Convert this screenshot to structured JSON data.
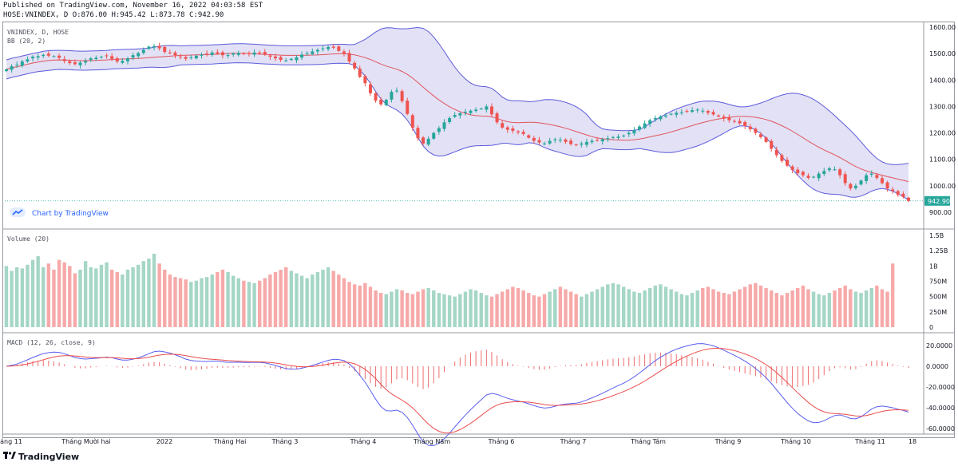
{
  "header": {
    "published": "Published on TradingView.com, November 16, 2022 04:03:58 EST",
    "ohlc": "HOSE:VNINDEX, D O:876.00 H:945.42 L:873.78 C:942.90"
  },
  "panels": {
    "price_title": "VNINDEX, D, HOSE",
    "bb_title": "BB (20, 2)",
    "volume_title": "Volume (20)",
    "macd_title": "MACD (12, 26, close, 9)"
  },
  "brand": {
    "chart_by": "Chart by TradingView",
    "footer": "TradingView"
  },
  "last_price_label": "942.90",
  "colors": {
    "up": "#26a69a",
    "down": "#ef5350",
    "bb_band": "#5b5bdb",
    "bb_fill": "#d9d7f1",
    "basis": "#e0555c",
    "macd": "#5a5ef0",
    "signal": "#ec4c4c"
  },
  "chart_data": [
    {
      "type": "candlestick",
      "title": "VNINDEX, D, HOSE",
      "indicator": "BB (20, 2)",
      "ylim": [
        850,
        1630
      ],
      "y_ticks": [
        "1600.00",
        "1500.00",
        "1400.00",
        "1300.00",
        "1200.00",
        "1100.00",
        "1000.00",
        "900.00"
      ],
      "x_ticks": [
        "áng 11",
        "Tháng Mười hai",
        "2022",
        "Tháng Hai",
        "Tháng 3",
        "Tháng 4",
        "Tháng Năm",
        "Tháng 6",
        "Tháng 7",
        "Tháng Tám",
        "Tháng 9",
        "Tháng 10",
        "Tháng 11",
        "18"
      ],
      "last_close": 942.9,
      "close": [
        1440,
        1452,
        1458,
        1470,
        1478,
        1488,
        1490,
        1495,
        1492,
        1490,
        1484,
        1472,
        1464,
        1460,
        1466,
        1472,
        1482,
        1484,
        1488,
        1492,
        1480,
        1470,
        1472,
        1482,
        1494,
        1502,
        1514,
        1526,
        1528,
        1520,
        1506,
        1502,
        1494,
        1488,
        1480,
        1486,
        1492,
        1496,
        1498,
        1504,
        1500,
        1494,
        1494,
        1500,
        1502,
        1498,
        1500,
        1504,
        1502,
        1496,
        1488,
        1482,
        1476,
        1474,
        1480,
        1486,
        1496,
        1502,
        1508,
        1514,
        1520,
        1525,
        1522,
        1510,
        1500,
        1470,
        1444,
        1412,
        1388,
        1350,
        1322,
        1308,
        1325,
        1355,
        1360,
        1320,
        1272,
        1220,
        1180,
        1160,
        1178,
        1200,
        1218,
        1240,
        1256,
        1268,
        1274,
        1280,
        1284,
        1288,
        1292,
        1300,
        1270,
        1240,
        1220,
        1212,
        1208,
        1202,
        1196,
        1182,
        1170,
        1164,
        1160,
        1170,
        1176,
        1174,
        1166,
        1158,
        1154,
        1160,
        1166,
        1170,
        1172,
        1176,
        1180,
        1184,
        1186,
        1190,
        1200,
        1210,
        1224,
        1236,
        1248,
        1256,
        1262,
        1266,
        1272,
        1276,
        1278,
        1282,
        1286,
        1288,
        1284,
        1276,
        1270,
        1262,
        1254,
        1248,
        1244,
        1236,
        1226,
        1214,
        1200,
        1184,
        1166,
        1140,
        1116,
        1094,
        1076,
        1060,
        1048,
        1040,
        1030,
        1034,
        1046,
        1056,
        1066,
        1062,
        1040,
        1010,
        990,
        1000,
        1020,
        1040,
        1046,
        1030,
        1010,
        990,
        980,
        966,
        958,
        942.9
      ]
    },
    {
      "type": "bar",
      "title": "Volume (20)",
      "ylim": [
        0,
        1.5
      ],
      "y_ticks": [
        "1.5B",
        "1.25B",
        "1B",
        "750M",
        "500M",
        "250M",
        "0"
      ],
      "values_billion": [
        1.0,
        0.92,
        0.98,
        0.96,
        1.02,
        1.1,
        1.16,
        0.98,
        1.04,
        0.94,
        1.1,
        1.06,
        1.0,
        0.88,
        0.94,
        1.08,
        0.98,
        0.96,
        1.02,
        1.06,
        0.94,
        0.9,
        0.86,
        0.94,
        0.98,
        1.02,
        1.08,
        1.12,
        1.2,
        1.04,
        0.94,
        0.86,
        0.82,
        0.8,
        0.78,
        0.74,
        0.76,
        0.8,
        0.82,
        0.86,
        0.9,
        0.94,
        0.9,
        0.84,
        0.8,
        0.76,
        0.74,
        0.72,
        0.76,
        0.8,
        0.86,
        0.9,
        0.94,
        0.98,
        0.92,
        0.88,
        0.84,
        0.8,
        0.86,
        0.9,
        0.94,
        0.98,
        0.92,
        0.86,
        0.8,
        0.74,
        0.7,
        0.68,
        0.72,
        0.66,
        0.6,
        0.56,
        0.54,
        0.58,
        0.62,
        0.6,
        0.56,
        0.54,
        0.58,
        0.62,
        0.64,
        0.6,
        0.56,
        0.54,
        0.52,
        0.5,
        0.54,
        0.58,
        0.62,
        0.6,
        0.56,
        0.52,
        0.5,
        0.54,
        0.58,
        0.62,
        0.66,
        0.64,
        0.6,
        0.56,
        0.52,
        0.5,
        0.54,
        0.58,
        0.62,
        0.66,
        0.62,
        0.58,
        0.54,
        0.5,
        0.54,
        0.58,
        0.62,
        0.66,
        0.7,
        0.72,
        0.7,
        0.66,
        0.62,
        0.58,
        0.56,
        0.6,
        0.64,
        0.68,
        0.7,
        0.66,
        0.62,
        0.58,
        0.54,
        0.52,
        0.56,
        0.6,
        0.64,
        0.66,
        0.62,
        0.58,
        0.56,
        0.54,
        0.58,
        0.62,
        0.66,
        0.7,
        0.72,
        0.68,
        0.64,
        0.6,
        0.56,
        0.52,
        0.56,
        0.6,
        0.64,
        0.68,
        0.62,
        0.58,
        0.54,
        0.52,
        0.56,
        0.6,
        0.64,
        0.68,
        0.62,
        0.58,
        0.56,
        0.6,
        0.64,
        0.68,
        0.62,
        0.58,
        1.04
      ]
    },
    {
      "type": "line",
      "title": "MACD (12, 26, close, 9)",
      "ylim": [
        -68,
        26
      ],
      "y_ticks": [
        "20.0000",
        "0.0000",
        "-20.0000",
        "-40.0000",
        "-60.0000"
      ]
    }
  ]
}
